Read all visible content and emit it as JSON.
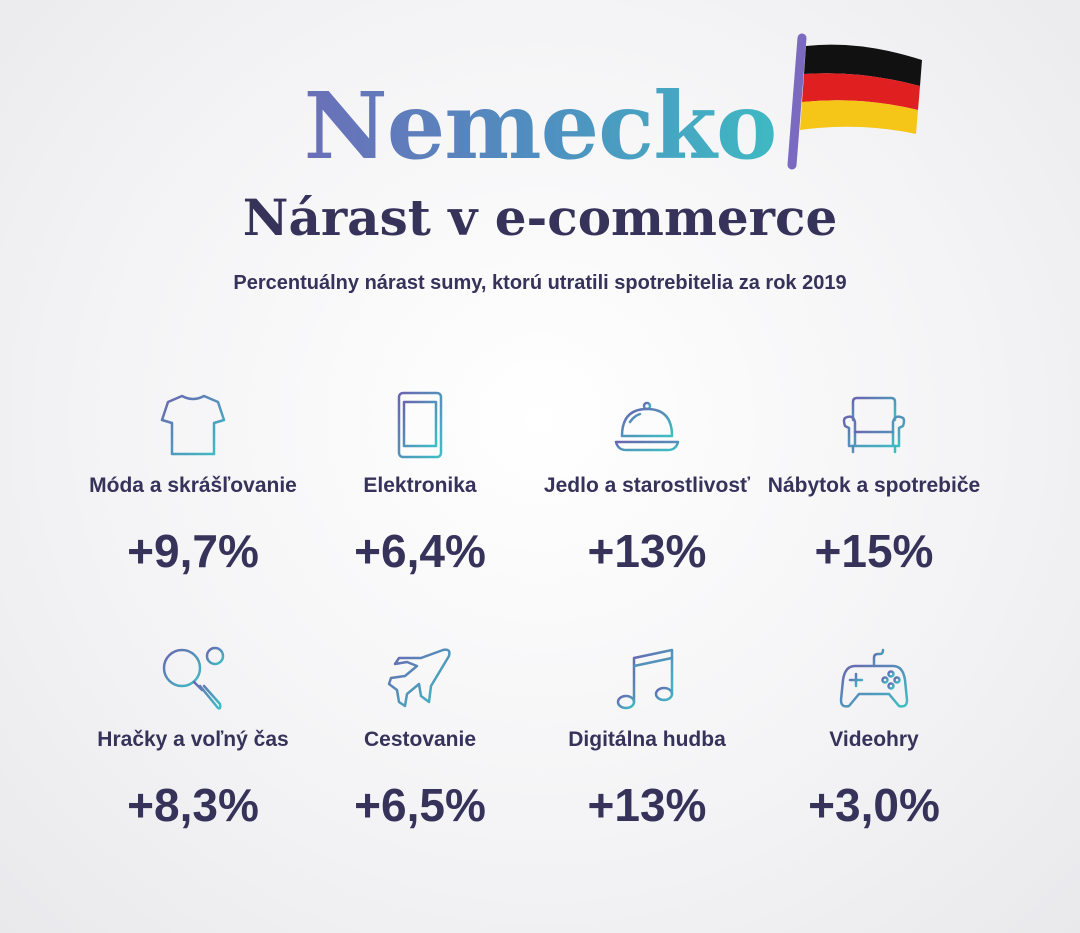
{
  "header": {
    "title": "Nemecko",
    "subtitle": "Nárast v e-commerce",
    "description": "Percentuálny nárast sumy, ktorú utratili spotrebitelia za rok 2019"
  },
  "items": [
    {
      "label": "Móda a skrášľovanie",
      "value": "+9,7%"
    },
    {
      "label": "Elektronika",
      "value": "+6,4%"
    },
    {
      "label": "Jedlo a starostlivosť",
      "value": "+13%"
    },
    {
      "label": "Nábytok a spotrebiče",
      "value": "+15%"
    },
    {
      "label": "Hračky a voľný čas",
      "value": "+8,3%"
    },
    {
      "label": "Cestovanie",
      "value": "+6,5%"
    },
    {
      "label": "Digitálna hudba",
      "value": "+13%"
    },
    {
      "label": "Videohry",
      "value": "+3,0%"
    }
  ]
}
